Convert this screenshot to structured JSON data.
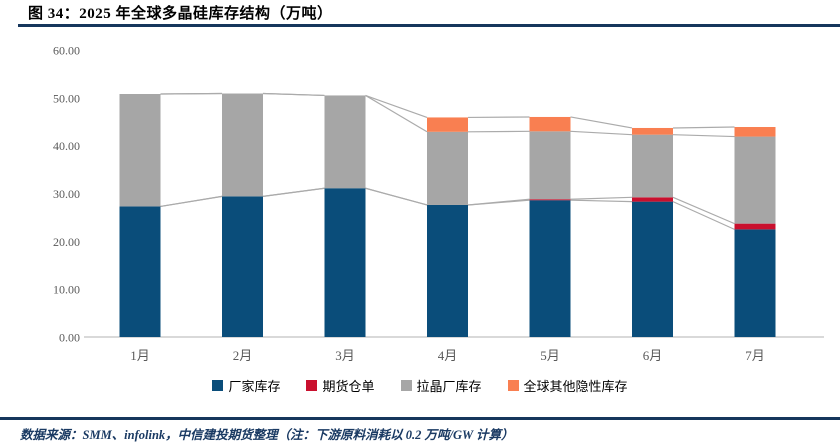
{
  "figure": {
    "title": "图 34：2025 年全球多晶硅库存结构（万吨）",
    "source_note": "数据来源：SMM、infolink，中信建投期货整理（注：下游原料消耗以 0.2 万吨/GW 计算）"
  },
  "colors": {
    "title_text": "#000000",
    "rule": "#16365C",
    "axis_text": "#595959",
    "axis_line": "#D9D9D9",
    "connector_line": "#ABABAB",
    "source_text": "#1A3A63"
  },
  "chart_data": {
    "type": "bar",
    "stacked": true,
    "title": "2025 年全球多晶硅库存结构（万吨）",
    "xlabel": "",
    "ylabel": "",
    "categories": [
      "1月",
      "2月",
      "3月",
      "4月",
      "5月",
      "6月",
      "7月"
    ],
    "series": [
      {
        "name": "厂家库存",
        "color": "#0A4D7A",
        "values": [
          27.3,
          29.4,
          31.1,
          27.6,
          28.6,
          28.3,
          22.5
        ]
      },
      {
        "name": "期货仓单",
        "color": "#C9102E",
        "values": [
          0,
          0,
          0,
          0,
          0.2,
          0.9,
          1.2
        ]
      },
      {
        "name": "拉晶厂库存",
        "color": "#A6A6A6",
        "values": [
          23.5,
          21.5,
          19.4,
          15.3,
          14.2,
          13.1,
          18.2
        ]
      },
      {
        "name": "全球其他隐性库存",
        "color": "#F97F51",
        "values": [
          0,
          0,
          0,
          3.0,
          3.0,
          1.4,
          2.0
        ]
      }
    ],
    "totals": [
      50.8,
      50.9,
      50.5,
      45.9,
      46.0,
      43.7,
      43.9
    ],
    "ylim": [
      0,
      60
    ],
    "ytick_step": 10,
    "ytick_labels": [
      "0.00",
      "10.00",
      "20.00",
      "30.00",
      "40.00",
      "50.00",
      "60.00"
    ],
    "grid": false,
    "series_lines": true,
    "legend_position": "bottom"
  }
}
